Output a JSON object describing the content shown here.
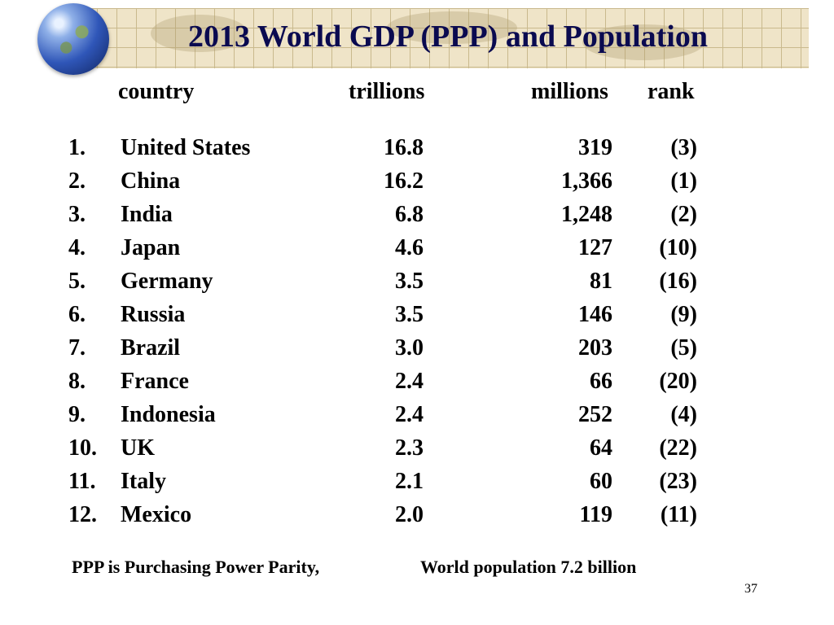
{
  "slide": {
    "title": "2013 World GDP (PPP) and Population",
    "page_number": "37",
    "colors": {
      "title_text": "#0a0a50",
      "title_bar": "#efe4c8"
    }
  },
  "table": {
    "headers": {
      "country": "country",
      "gdp": "trillions",
      "population": "millions",
      "rank": "rank"
    },
    "rows": [
      {
        "num": "1.",
        "country": "United States",
        "gdp": "16.8",
        "population": "319",
        "rank": "(3)"
      },
      {
        "num": "2.",
        "country": "China",
        "gdp": "16.2",
        "population": "1,366",
        "rank": "(1)"
      },
      {
        "num": "3.",
        "country": "India",
        "gdp": "6.8",
        "population": "1,248",
        "rank": "(2)"
      },
      {
        "num": "4.",
        "country": "Japan",
        "gdp": "4.6",
        "population": "127",
        "rank": "(10)"
      },
      {
        "num": "5.",
        "country": "Germany",
        "gdp": "3.5",
        "population": "81",
        "rank": "(16)"
      },
      {
        "num": "6.",
        "country": "Russia",
        "gdp": "3.5",
        "population": "146",
        "rank": "(9)"
      },
      {
        "num": "7.",
        "country": "Brazil",
        "gdp": "3.0",
        "population": "203",
        "rank": "(5)"
      },
      {
        "num": "8.",
        "country": "France",
        "gdp": "2.4",
        "population": "66",
        "rank": "(20)"
      },
      {
        "num": "9.",
        "country": "Indonesia",
        "gdp": "2.4",
        "population": "252",
        "rank": "(4)"
      },
      {
        "num": "10.",
        "country": "UK",
        "gdp": "2.3",
        "population": "64",
        "rank": "(22)"
      },
      {
        "num": "11.",
        "country": "Italy",
        "gdp": "2.1",
        "population": "60",
        "rank": "(23)"
      },
      {
        "num": "12.",
        "country": "Mexico",
        "gdp": "2.0",
        "population": "119",
        "rank": "(11)"
      }
    ]
  },
  "footnotes": {
    "ppp": "PPP is Purchasing Power Parity,",
    "population": "World population 7.2 billion"
  }
}
